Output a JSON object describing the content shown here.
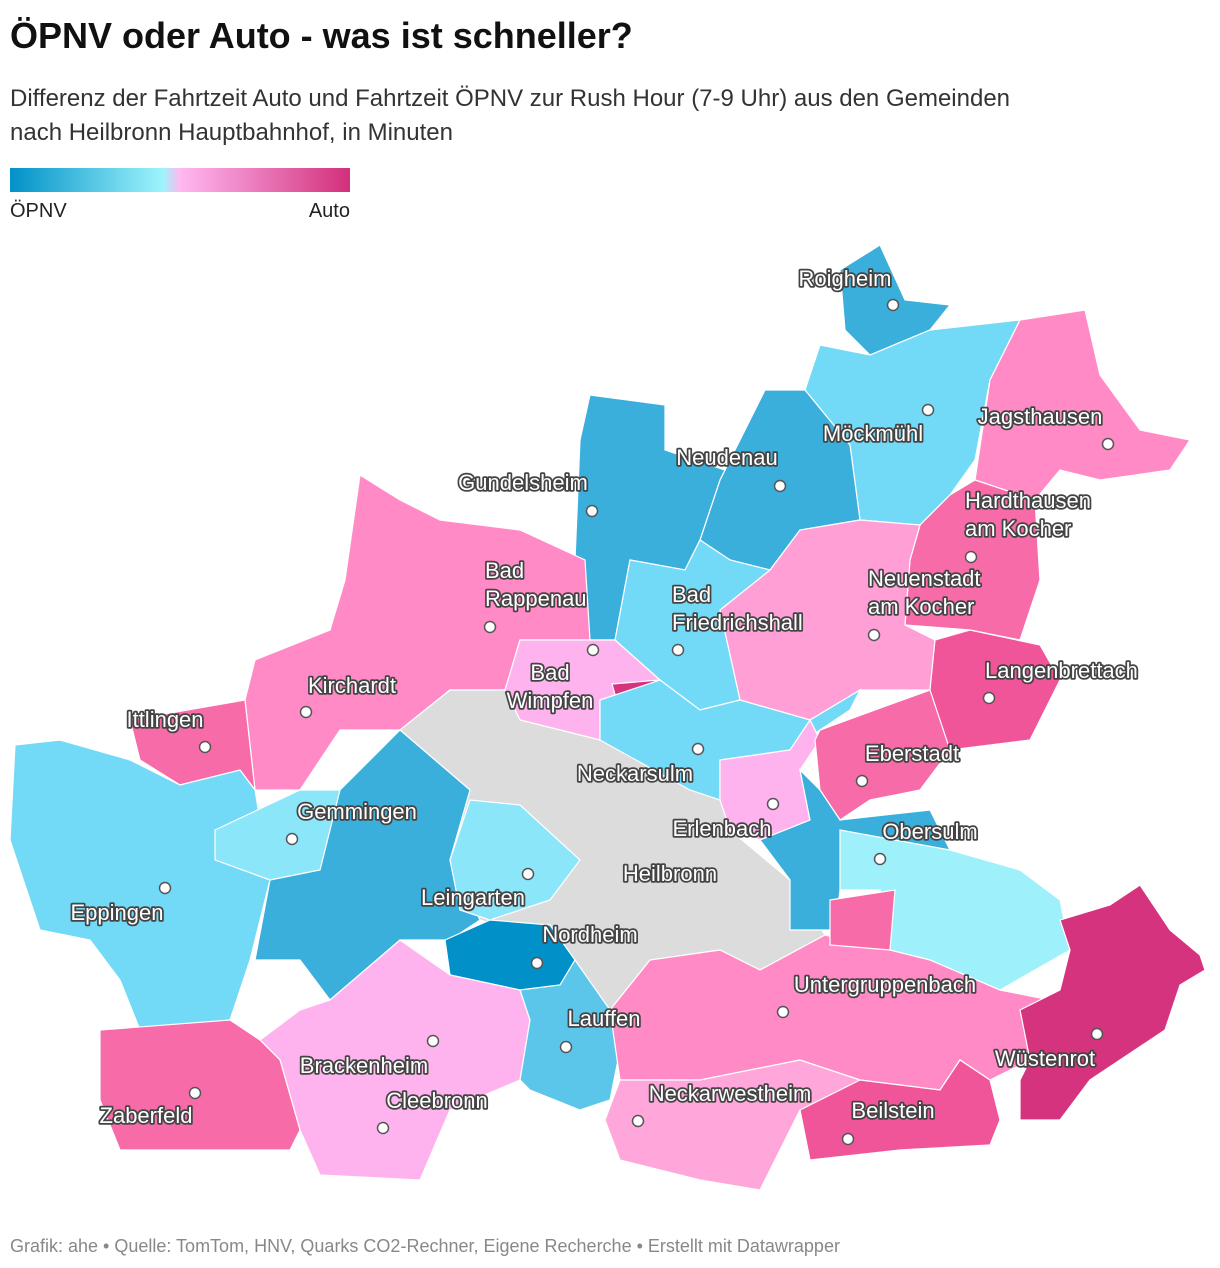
{
  "header": {
    "title": "ÖPNV oder Auto - was ist schneller?",
    "subtitle": [
      "Differenz der Fahrtzeit Auto und Fahrtzeit ÖPNV zur Rush Hour (7-9 Uhr) aus den Gemeinden",
      "nach Heilbronn Hauptbahnhof, in Minuten"
    ]
  },
  "legend": {
    "low": "ÖPNV",
    "high": "Auto"
  },
  "places": [
    {
      "label": [
        "Roigheim"
      ]
    },
    {
      "label": [
        "Möckmühl"
      ]
    },
    {
      "label": [
        "Jagsthausen"
      ]
    },
    {
      "label": [
        "Neudenau"
      ]
    },
    {
      "label": [
        "Gundelsheim"
      ]
    },
    {
      "label": [
        "Hardthausen",
        "am Kocher"
      ]
    },
    {
      "label": [
        "Neuenstadt",
        "am Kocher"
      ]
    },
    {
      "label": [
        "Bad",
        "Rappenau"
      ]
    },
    {
      "label": [
        "Bad",
        "Friedrichshall"
      ]
    },
    {
      "label": [
        "Bad",
        "Wimpfen"
      ]
    },
    {
      "label": [
        "Langenbrettach"
      ]
    },
    {
      "label": [
        "Kirchardt"
      ]
    },
    {
      "label": [
        "Ittlingen"
      ]
    },
    {
      "label": [
        "Neckarsulm"
      ]
    },
    {
      "label": [
        "Eberstadt"
      ]
    },
    {
      "label": [
        "Gemmingen"
      ]
    },
    {
      "label": [
        "Erlenbach"
      ]
    },
    {
      "label": [
        "Obersulm"
      ]
    },
    {
      "label": [
        "Heilbronn"
      ]
    },
    {
      "label": [
        "Leingarten"
      ]
    },
    {
      "label": [
        "Eppingen"
      ]
    },
    {
      "label": [
        "Nordheim"
      ]
    },
    {
      "label": [
        "Untergruppenbach"
      ]
    },
    {
      "label": [
        "Lauffen"
      ]
    },
    {
      "label": [
        "Wüstenrot"
      ]
    },
    {
      "label": [
        "Brackenheim"
      ]
    },
    {
      "label": [
        "Neckarwestheim"
      ]
    },
    {
      "label": [
        "Cleebronn"
      ]
    },
    {
      "label": [
        "Zaberfeld"
      ]
    },
    {
      "label": [
        "Beilstein"
      ]
    }
  ],
  "footer": "Grafik: ahe • Quelle: TomTom, HNV, Quarks CO2-Rechner, Eigene Recherche • Erstellt mit Datawrapper"
}
